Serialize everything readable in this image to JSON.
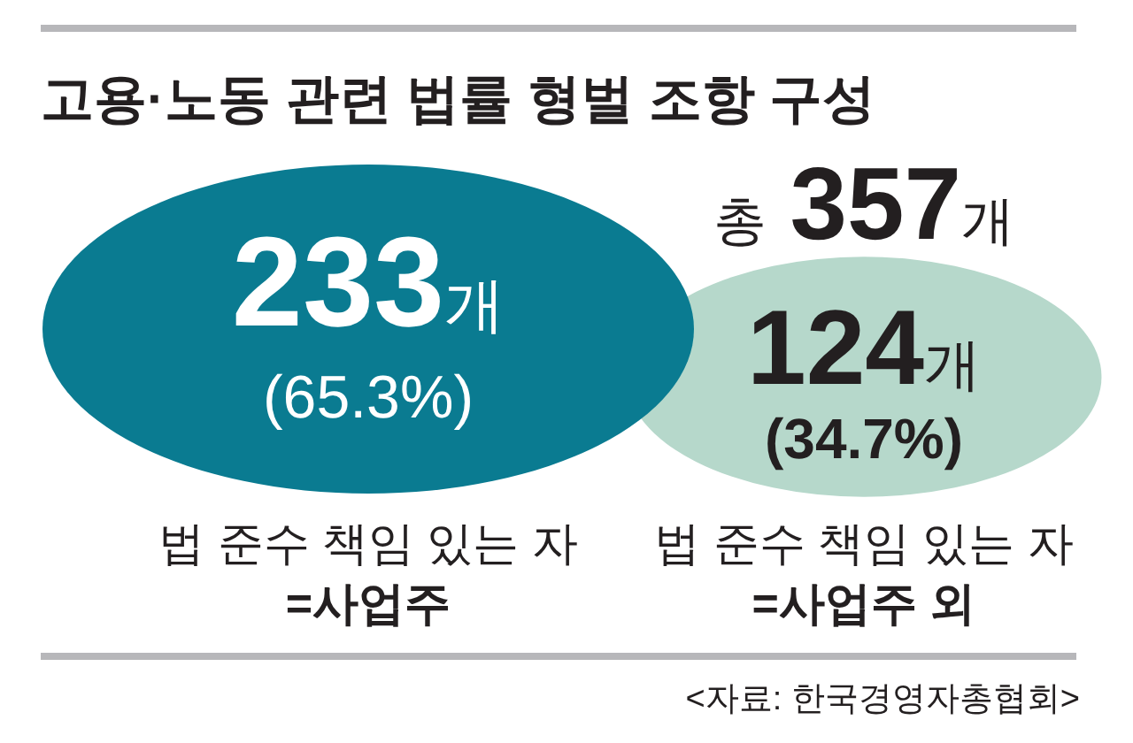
{
  "chart_data": {
    "type": "other",
    "title": "고용·노동 관련 법률 형벌 조항 구성",
    "categories": [
      "법 준수 책임 있는 자\n=사업주",
      "법 준수 책임 있는 자\n=사업주 외"
    ],
    "values": [
      233,
      124
    ],
    "colors": [
      "#0a7b91",
      "#b6d8cb"
    ],
    "value_labels": [
      "233개",
      "124개"
    ],
    "annotations": [
      "총 357개",
      "(65.3%)",
      "(34.7%)",
      "<자료: 한국경영자총협회>"
    ]
  }
}
